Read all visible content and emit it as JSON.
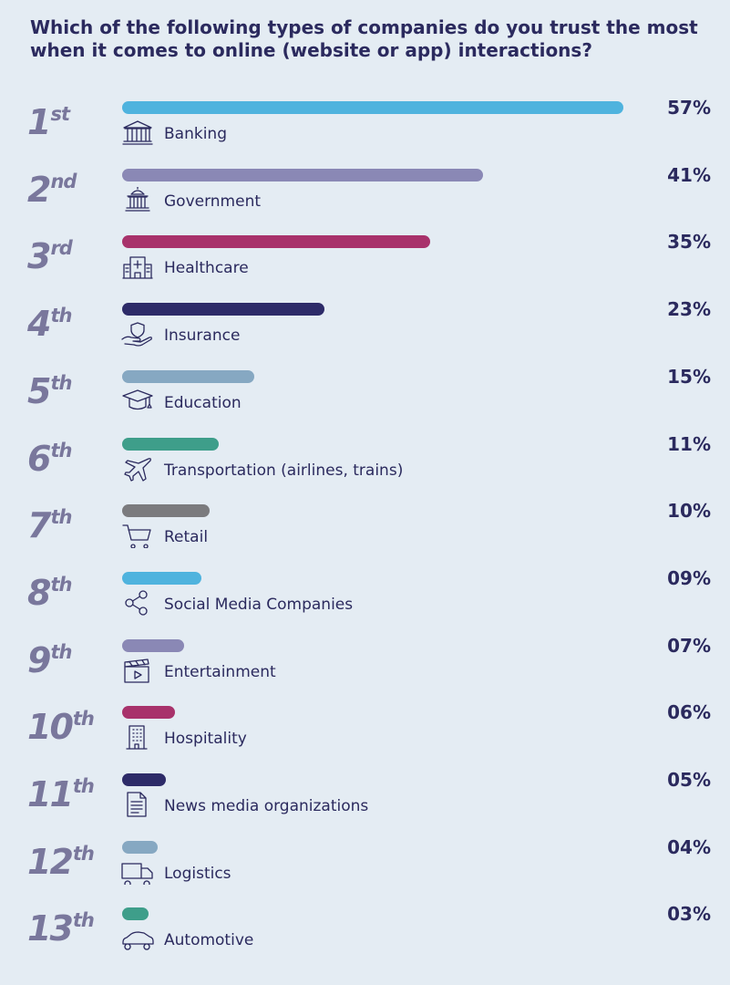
{
  "chart_data": {
    "type": "bar",
    "orientation": "horizontal",
    "title": "Which of the following types of companies do you trust the most when it comes to online (website or app) interactions?",
    "grid": false,
    "xlim": [
      0,
      57
    ],
    "categories": [
      "Banking",
      "Government",
      "Healthcare",
      "Insurance",
      "Education",
      "Transportation (airlines, trains)",
      "Retail",
      "Social Media Companies",
      "Entertainment",
      "Hospitality",
      "News media organizations",
      "Logistics",
      "Automotive"
    ],
    "values": [
      57,
      41,
      35,
      23,
      15,
      11,
      10,
      9,
      7,
      6,
      5,
      4,
      3
    ],
    "value_labels": [
      "57%",
      "41%",
      "35%",
      "23%",
      "15%",
      "11%",
      "10%",
      "09%",
      "07%",
      "06%",
      "05%",
      "04%",
      "03%"
    ],
    "rank_numbers": [
      "1",
      "2",
      "3",
      "4",
      "5",
      "6",
      "7",
      "8",
      "9",
      "10",
      "11",
      "12",
      "13"
    ],
    "rank_suffixes": [
      "st",
      "nd",
      "rd",
      "th",
      "th",
      "th",
      "th",
      "th",
      "th",
      "th",
      "th",
      "th",
      "th"
    ],
    "bar_colors": [
      "#4fb3de",
      "#8a88b5",
      "#a8326b",
      "#2d2b68",
      "#86a8c2",
      "#3e9e8a",
      "#7b7b7e",
      "#4fb3de",
      "#8a88b5",
      "#a8326b",
      "#2d2b68",
      "#86a8c2",
      "#3e9e8a"
    ],
    "icons": [
      "bank-icon",
      "government-building-icon",
      "hospital-icon",
      "insurance-shield-hand-icon",
      "graduation-cap-icon",
      "airplane-icon",
      "shopping-cart-icon",
      "share-icon",
      "clapperboard-icon",
      "hotel-building-icon",
      "document-icon",
      "truck-icon",
      "car-icon"
    ]
  }
}
